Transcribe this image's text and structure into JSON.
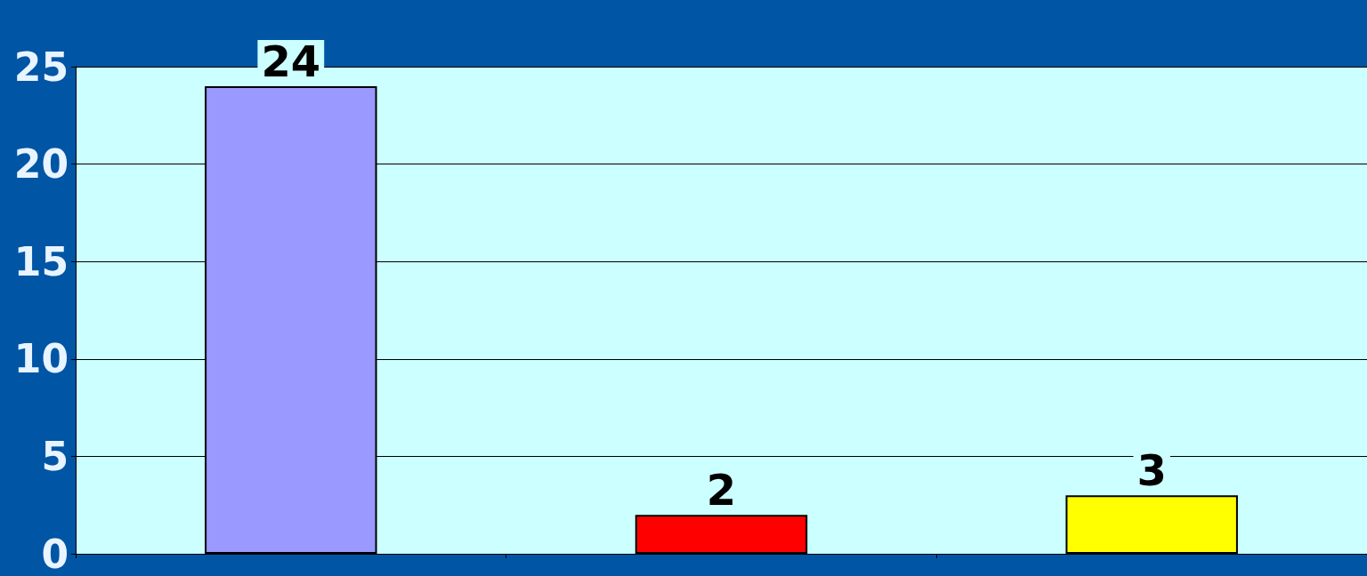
{
  "chart_data": {
    "type": "bar",
    "categories": [
      null,
      null,
      null
    ],
    "values": [
      24,
      2,
      3
    ],
    "colors": [
      "#9999ff",
      "#ff0000",
      "#ffff00"
    ],
    "ylim": [
      0,
      25
    ],
    "yticks": [
      0,
      5,
      10,
      15,
      20,
      25
    ],
    "grid": "y",
    "data_labels": true
  }
}
